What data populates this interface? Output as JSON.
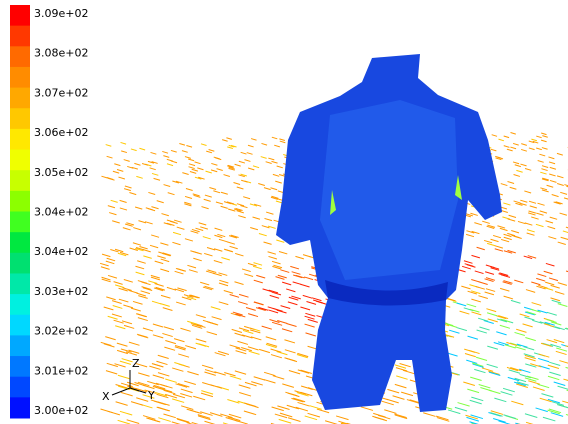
{
  "colorbar": {
    "labels": [
      "3.09e+02",
      "3.08e+02",
      "3.07e+02",
      "3.06e+02",
      "3.05e+02",
      "3.04e+02",
      "3.04e+02",
      "3.03e+02",
      "3.02e+02",
      "3.01e+02",
      "3.00e+02"
    ],
    "colors": [
      "#ff0000",
      "#ff3800",
      "#ff6a00",
      "#ff8c00",
      "#ffa800",
      "#ffc800",
      "#ffe800",
      "#f0ff00",
      "#c8ff00",
      "#8cff00",
      "#40ff20",
      "#00e840",
      "#00e070",
      "#00e8a8",
      "#00f0e0",
      "#00d8ff",
      "#00a8ff",
      "#0078ff",
      "#0048ff",
      "#0010ff"
    ]
  },
  "axes_triad": {
    "x": "X",
    "y": "Y",
    "z": "Z"
  }
}
